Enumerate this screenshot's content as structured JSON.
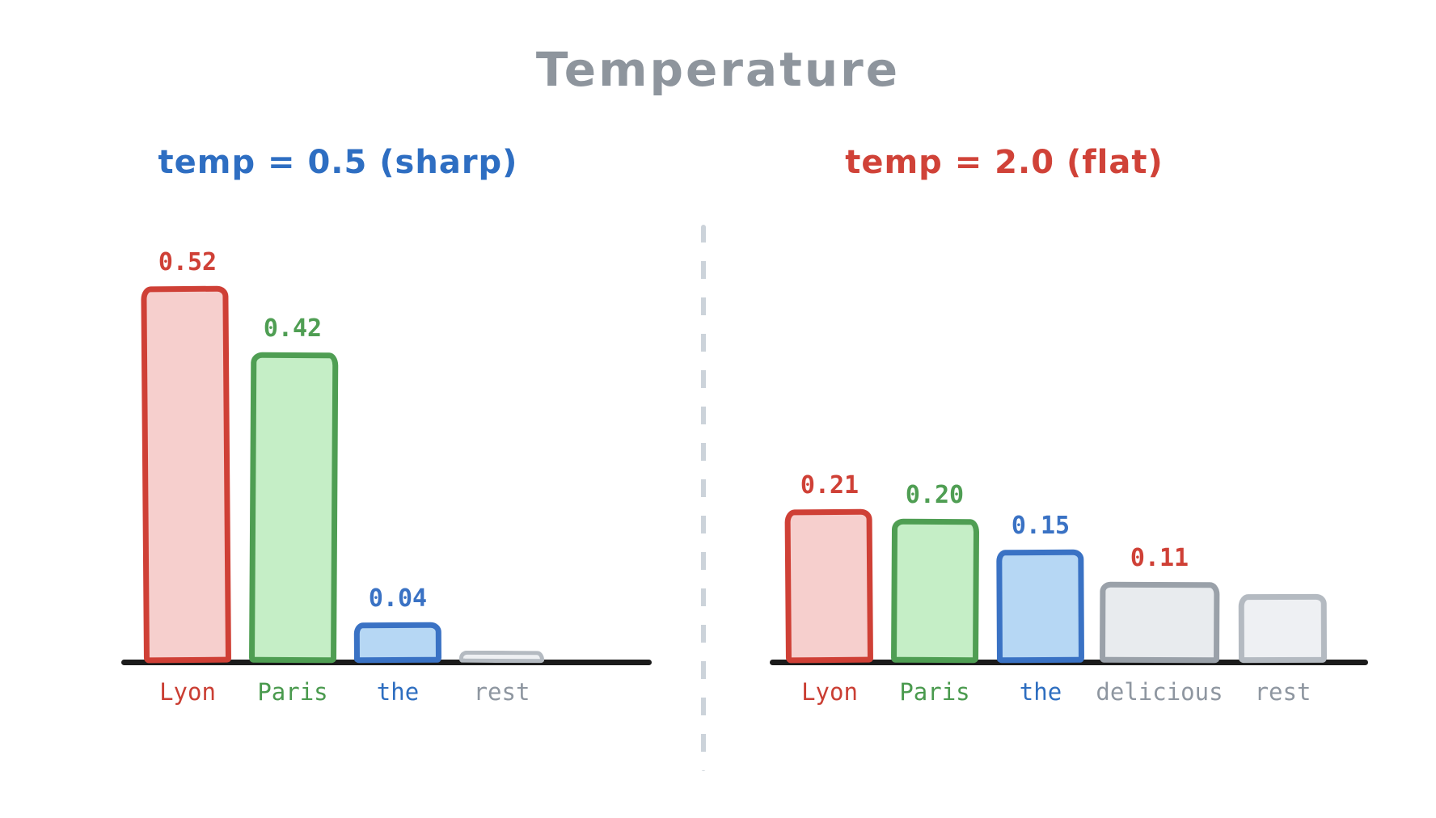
{
  "page": {
    "title": "Temperature",
    "title_color": "#8e959d",
    "background": "#ffffff"
  },
  "divider": {
    "style": "dashed-vertical",
    "color": "#ccd3da"
  },
  "chart_data": [
    {
      "type": "bar",
      "title": "temp = 0.5 (sharp)",
      "title_color": "#2e6ec2",
      "categories": [
        "Lyon",
        "Paris",
        "the",
        "rest"
      ],
      "values": [
        0.52,
        0.42,
        0.04,
        0.02
      ],
      "value_labels": [
        "0.52",
        "0.42",
        "0.04",
        ""
      ],
      "bar_stroke": [
        "#cf4036",
        "#4f9e53",
        "#3a72c4",
        "#b4bac1"
      ],
      "bar_fill": [
        "#f6cfcd",
        "#c5eec6",
        "#b6d7f4",
        "#eef0f3"
      ],
      "label_colors": [
        "#cf4036",
        "#4f9e53",
        "#3a72c4",
        ""
      ],
      "tick_colors": [
        "#ca3e33",
        "#4a9a4e",
        "#2e6ec0",
        "#8e96a0"
      ],
      "xlabel": "",
      "ylabel": "",
      "ylim": [
        0,
        0.6
      ],
      "grid": false,
      "legend": false,
      "axis_color": "#1b1b1b"
    },
    {
      "type": "bar",
      "title": "temp = 2.0 (flat)",
      "title_color": "#d04238",
      "categories": [
        "Lyon",
        "Paris",
        "the",
        "delicious",
        "rest"
      ],
      "values": [
        0.21,
        0.2,
        0.15,
        0.11,
        0.09
      ],
      "value_labels": [
        "0.21",
        "0.20",
        "0.15",
        "0.11",
        ""
      ],
      "bar_stroke": [
        "#cf4036",
        "#4f9e53",
        "#3a72c4",
        "#9aa1a9",
        "#b4bac1"
      ],
      "bar_fill": [
        "#f6cfcd",
        "#c5eec6",
        "#b6d7f4",
        "#e8ebee",
        "#eef0f3"
      ],
      "label_colors": [
        "#cf4036",
        "#4f9e53",
        "#3a72c4",
        "#cf4036",
        ""
      ],
      "tick_colors": [
        "#ca3e33",
        "#4a9a4e",
        "#2e6ec0",
        "#8e96a0",
        "#8e96a0"
      ],
      "xlabel": "",
      "ylabel": "",
      "ylim": [
        0,
        0.6
      ],
      "grid": false,
      "legend": false,
      "axis_color": "#1b1b1b"
    }
  ]
}
